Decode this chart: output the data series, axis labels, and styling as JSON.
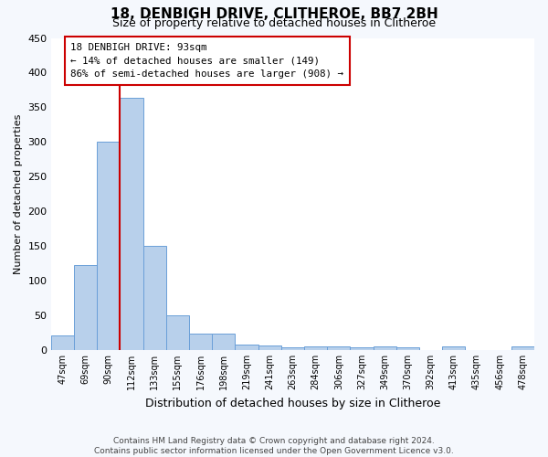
{
  "title": "18, DENBIGH DRIVE, CLITHEROE, BB7 2BH",
  "subtitle": "Size of property relative to detached houses in Clitheroe",
  "xlabel": "Distribution of detached houses by size in Clitheroe",
  "ylabel": "Number of detached properties",
  "bar_values": [
    20,
    122,
    300,
    363,
    150,
    50,
    23,
    23,
    8,
    6,
    4,
    5,
    5,
    3,
    5,
    3,
    0,
    5,
    0,
    0,
    5
  ],
  "bar_labels": [
    "47sqm",
    "69sqm",
    "90sqm",
    "112sqm",
    "133sqm",
    "155sqm",
    "176sqm",
    "198sqm",
    "219sqm",
    "241sqm",
    "263sqm",
    "284sqm",
    "306sqm",
    "327sqm",
    "349sqm",
    "370sqm",
    "392sqm",
    "413sqm",
    "435sqm",
    "456sqm",
    "478sqm"
  ],
  "bar_color": "#b8d0eb",
  "bar_edge_color": "#6a9fd8",
  "background_color": "#ffffff",
  "fig_background": "#f5f8fd",
  "grid_color": "#d8e4f0",
  "annotation_line1": "18 DENBIGH DRIVE: 93sqm",
  "annotation_line2": "← 14% of detached houses are smaller (149)",
  "annotation_line3": "86% of semi-detached houses are larger (908) →",
  "annotation_box_edge": "#cc0000",
  "red_line_x": 2.5,
  "ylim": [
    0,
    450
  ],
  "yticks": [
    0,
    50,
    100,
    150,
    200,
    250,
    300,
    350,
    400,
    450
  ],
  "footer_line1": "Contains HM Land Registry data © Crown copyright and database right 2024.",
  "footer_line2": "Contains public sector information licensed under the Open Government Licence v3.0."
}
